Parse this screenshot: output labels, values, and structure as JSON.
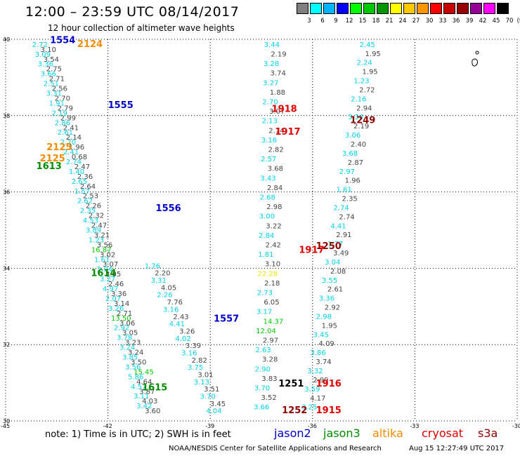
{
  "header": {
    "title": "12:00  –  23:59  UTC  08/14/2017",
    "subtitle": "12 hour collection of altimeter wave heights"
  },
  "colorbar": {
    "unit": "(ft)",
    "colors": [
      "#808080",
      "#00ffff",
      "#00b4ff",
      "#0000ff",
      "#00ff00",
      "#00c800",
      "#009600",
      "#ffff00",
      "#ffc800",
      "#ff9600",
      "#ff0000",
      "#c80000",
      "#960000",
      "#960096",
      "#ff00ff",
      "#000000"
    ],
    "ticks": [
      "3",
      "6",
      "9",
      "12",
      "15",
      "18",
      "21",
      "24",
      "27",
      "30",
      "33",
      "36",
      "39",
      "42",
      "45",
      "70"
    ]
  },
  "axes": {
    "lat_labels": [
      "40",
      "38",
      "36",
      "34",
      "32",
      "30"
    ],
    "lon_labels": [
      "-45",
      "-42",
      "-39",
      "-36",
      "-33",
      "-30"
    ]
  },
  "passes": [
    {
      "id": "1554",
      "color": "#0000c8",
      "lat": 39.9,
      "lon": -43.7
    },
    {
      "id": "2124",
      "color": "#f08c00",
      "lat": 39.8,
      "lon": -42.9
    },
    {
      "id": "1555",
      "color": "#0000c8",
      "lat": 38.2,
      "lon": -42.0
    },
    {
      "id": "2125",
      "color": "#f08c00",
      "lat": 37.1,
      "lon": -43.8
    },
    {
      "id": "2125",
      "color": "#f08c00",
      "lat": 36.8,
      "lon": -44.0
    },
    {
      "id": "1613",
      "color": "#008c00",
      "lat": 36.6,
      "lon": -44.1
    },
    {
      "id": "1556",
      "color": "#0000c8",
      "lat": 35.5,
      "lon": -40.6
    },
    {
      "id": "1614",
      "color": "#008c00",
      "lat": 33.8,
      "lon": -42.5
    },
    {
      "id": "1557",
      "color": "#0000c8",
      "lat": 32.6,
      "lon": -38.9
    },
    {
      "id": "1615",
      "color": "#008c00",
      "lat": 30.8,
      "lon": -41.0
    },
    {
      "id": "1918",
      "color": "#e10000",
      "lat": 38.1,
      "lon": -37.2
    },
    {
      "id": "1917",
      "color": "#e10000",
      "lat": 37.5,
      "lon": -37.1
    },
    {
      "id": "1249",
      "color": "#8c0000",
      "lat": 37.8,
      "lon": -34.9
    },
    {
      "id": "1250",
      "color": "#8c0000",
      "lat": 34.5,
      "lon": -35.9
    },
    {
      "id": "1917",
      "color": "#e10000",
      "lat": 34.4,
      "lon": -36.4
    },
    {
      "id": "1251",
      "color": "#000000",
      "lat": 30.9,
      "lon": -37.0
    },
    {
      "id": "1916",
      "color": "#e10000",
      "lat": 30.9,
      "lon": -35.9
    },
    {
      "id": "1252",
      "color": "#8c0000",
      "lat": 30.2,
      "lon": -36.9
    },
    {
      "id": "1915",
      "color": "#e10000",
      "lat": 30.2,
      "lon": -35.9
    }
  ],
  "tracks": [
    {
      "name": "track-1",
      "color": "#00d2e6",
      "start": [
        39.8,
        -44.1
      ],
      "end": [
        30.2,
        -41.0
      ],
      "values": [
        "2.72",
        "3.10",
        "3.09",
        "3.54",
        "3.36",
        "2.75",
        "3.66",
        "2.71",
        "2.51",
        "2.56",
        "3.31",
        "2.70",
        "1.91",
        "2.79",
        "2.19",
        "2.99",
        "2.86",
        "2.41",
        "2.61",
        "2.14",
        "2.70",
        "1.96",
        "2.41",
        "0.68",
        "2.74",
        "2.47",
        "1.40",
        "2.36",
        "2.65",
        "2.64",
        "1.57",
        "2.53",
        "2.62",
        "2.26",
        "2.35",
        "2.32",
        "4.53",
        "2.47",
        "3.89",
        "3.21",
        "1.23",
        "3.56",
        "16.87",
        "3.02",
        "1.61",
        "3.07",
        "2.94",
        "3.05",
        "3.27",
        "2.46",
        "4.97",
        "3.36",
        "2.07",
        "3.14",
        "3.26",
        "2.71",
        "13.50",
        "3.06",
        "2.92",
        "3.05",
        "3.78",
        "3.23",
        "3.24",
        "3.24",
        "3.85",
        "3.50",
        "3.56",
        "15.45",
        "5.86",
        "4.64",
        "4.57",
        "3.87",
        "3.11",
        "4.03",
        "3.42",
        "3.60"
      ]
    },
    {
      "name": "track-2",
      "color": "#00d2e6",
      "start": [
        34.0,
        -40.8
      ],
      "end": [
        30.2,
        -39.0
      ],
      "values": [
        "1.76",
        "2.20",
        "3.31",
        "4.05",
        "2.26",
        "7.76",
        "3.16",
        "2.43",
        "4.41",
        "3.26",
        "4.02",
        "3.39",
        "3.16",
        "2.82",
        "3.75",
        "3.01",
        "3.13",
        "3.51",
        "3.70",
        "3.45",
        "4.04"
      ]
    },
    {
      "name": "track-3",
      "color": "#00d2e6",
      "start": [
        39.8,
        -37.3
      ],
      "end": [
        30.3,
        -37.6
      ],
      "values": [
        "3.44",
        "2.19",
        "3.28",
        "3.74",
        "3.27",
        "1.88",
        "2.70",
        "3.07",
        "2.13",
        "2.74",
        "3.16",
        "2.82",
        "2.57",
        "3.68",
        "3.43",
        "2.84",
        "2.68",
        "2.98",
        "3.00",
        "3.22",
        "2.84",
        "2.42",
        "1.81",
        "3.10",
        "22.28",
        "2.18",
        "2.73",
        "6.05",
        "3.17",
        "14.37",
        "12.04",
        "2.97",
        "2.63",
        "3.28",
        "2.90",
        "3.83",
        "3.70",
        "3.52",
        "3.66"
      ]
    },
    {
      "name": "track-4",
      "color": "#00d2e6",
      "start": [
        39.8,
        -34.5
      ],
      "end": [
        30.3,
        -36.2
      ],
      "values": [
        "2.45",
        "1.95",
        "2.24",
        "1.95",
        "1.23",
        "2.72",
        "2.16",
        "2.94",
        "3.34",
        "2.19",
        "3.06",
        "2.40",
        "3.68",
        "2.87",
        "2.97",
        "1.96",
        "1.61",
        "2.35",
        "2.74",
        "2.74",
        "4.41",
        "2.91",
        "1.77",
        "3.49",
        "3.04",
        "2.08",
        "3.55",
        "2.61",
        "3.36",
        "2.92",
        "2.98",
        "1.95",
        "3.45",
        "4.09",
        "3.86",
        "3.74",
        "3.32",
        "2.99",
        "3.59",
        "4.17",
        "3.25"
      ]
    }
  ],
  "footer": {
    "note": "note:  1) Time is in UTC;  2) SWH is in feet",
    "satellites": [
      {
        "name": "jason2",
        "color": "#0000c8"
      },
      {
        "name": "jason3",
        "color": "#008c00"
      },
      {
        "name": "altika",
        "color": "#f08c00"
      },
      {
        "name": "cryosat",
        "color": "#e10000"
      },
      {
        "name": "s3a",
        "color": "#8c0000"
      }
    ],
    "credit": "NOAA/NESDIS Center for Satellite Applications and Research",
    "timestamp": "Aug 15 12:27:49 UTC 2017"
  }
}
